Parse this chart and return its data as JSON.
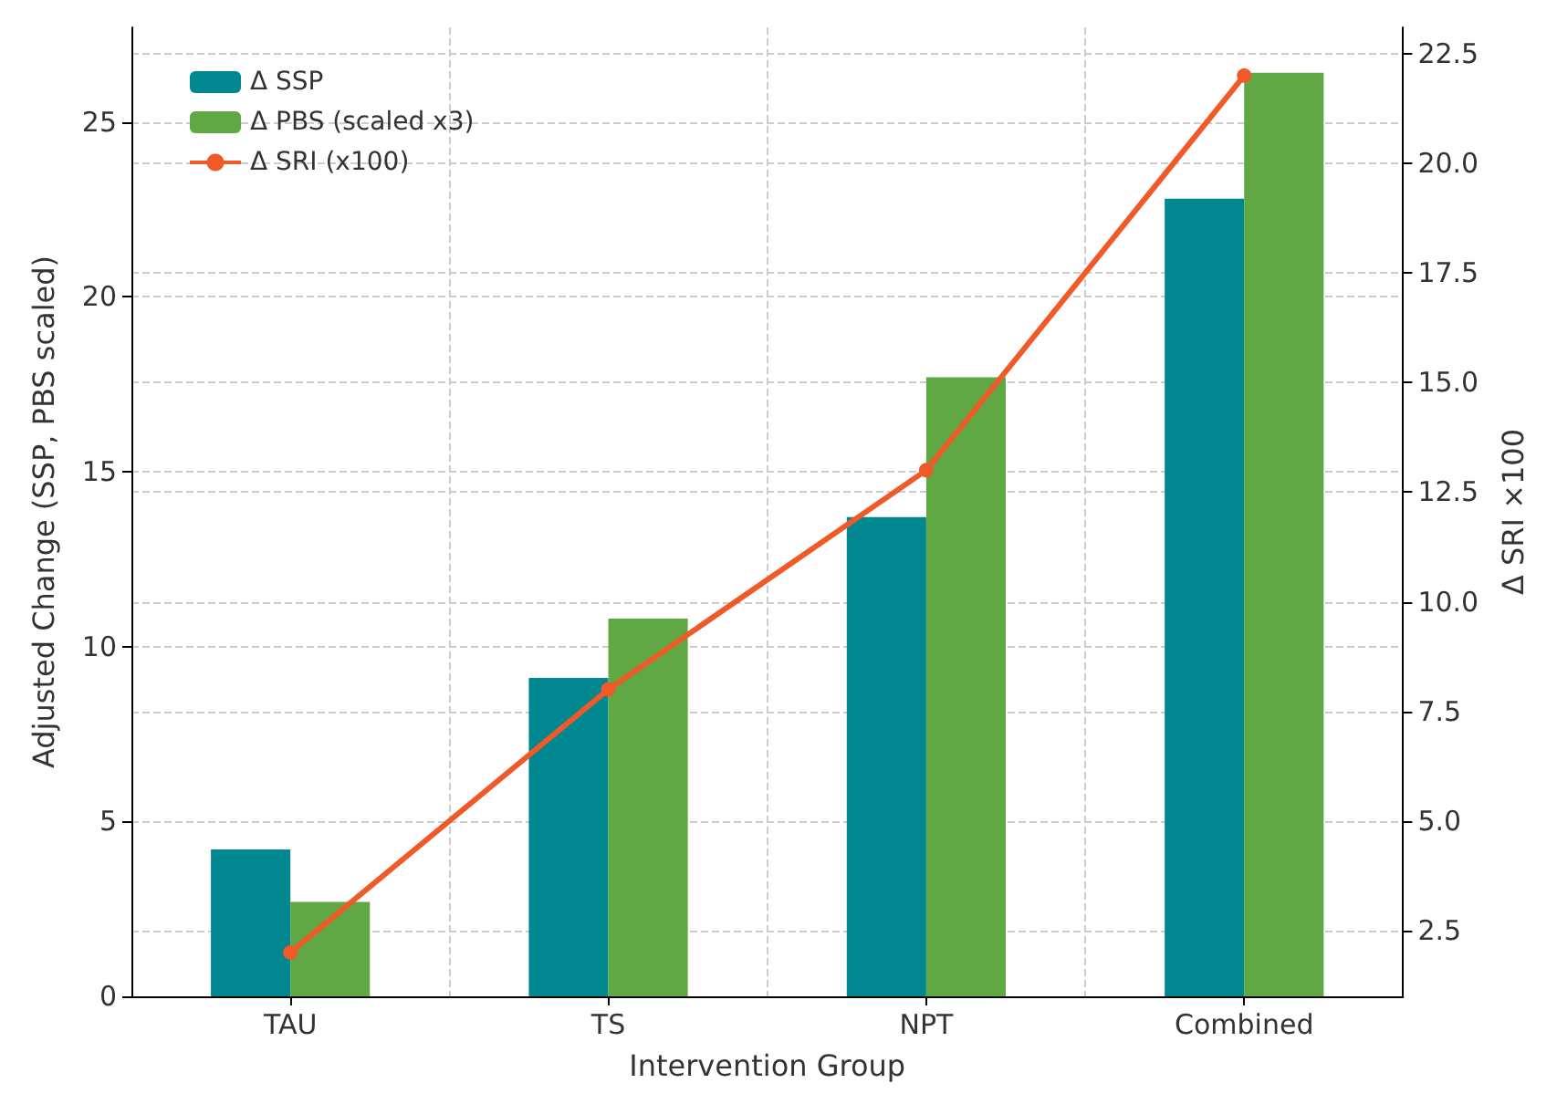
{
  "chart_data": {
    "type": "bar",
    "xlabel": "Intervention Group",
    "ylabel": "Adjusted Change (SSP, PBS scaled)",
    "y2label": "Δ SRI ×100",
    "categories": [
      "TAU",
      "TS",
      "NPT",
      "Combined"
    ],
    "series": [
      {
        "name": "Δ SSP",
        "color": "#00878f",
        "values": [
          4.2,
          9.1,
          13.7,
          22.8
        ]
      },
      {
        "name": "Δ PBS (scaled x3)",
        "color": "#5fa843",
        "values": [
          2.7,
          10.8,
          17.7,
          26.4
        ]
      },
      {
        "name": "Δ SRI (x100)",
        "type": "line",
        "axis": "y2",
        "color": "#f05a28",
        "values": [
          2.0,
          8.0,
          13.0,
          22.0
        ]
      }
    ],
    "ylim": [
      0,
      27.7
    ],
    "yticks": [
      0,
      5,
      10,
      15,
      20,
      25
    ],
    "y2lim": [
      1.0,
      23.1
    ],
    "y2ticks": [
      {
        "value": 2.5,
        "label": "2.5"
      },
      {
        "value": 5,
        "label": "5.0"
      },
      {
        "value": 7.5,
        "label": "7.5"
      },
      {
        "value": 10,
        "label": "10.0"
      },
      {
        "value": 12.5,
        "label": "12.5"
      },
      {
        "value": 15,
        "label": "15.0"
      },
      {
        "value": 17.5,
        "label": "17.5"
      },
      {
        "value": 20,
        "label": "20.0"
      },
      {
        "value": 22.5,
        "label": "22.5"
      }
    ],
    "grid": true,
    "legend": "top left",
    "marker": "circle",
    "line_style": "solid"
  }
}
